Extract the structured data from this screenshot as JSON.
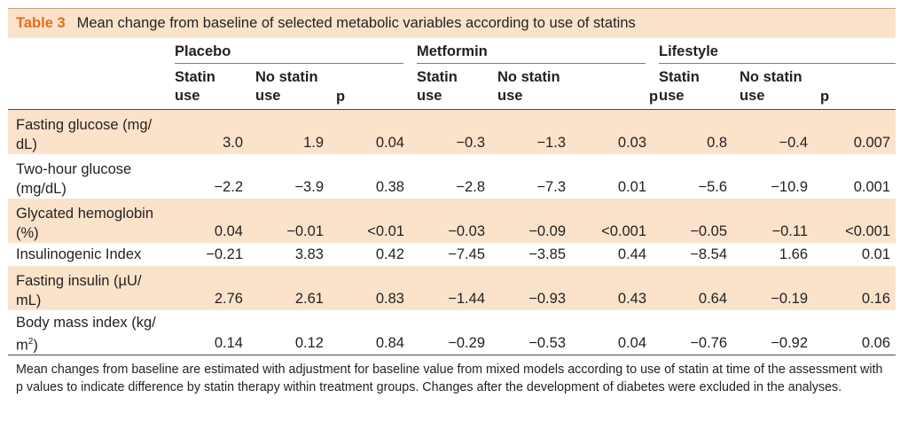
{
  "table": {
    "label": "Table 3",
    "title": "Mean change from baseline of selected metabolic variables according to use of statins",
    "groups": [
      "Placebo",
      "Metformin",
      "Lifestyle"
    ],
    "subheaders": {
      "statin_line1": "Statin",
      "statin_line2": "use",
      "nostatin_line1": "No statin",
      "nostatin_line2": "use",
      "p": "p"
    },
    "rows": [
      {
        "label1": "Fasting glucose (mg/",
        "label2": "dL)",
        "values": [
          "3.0",
          "1.9",
          "0.04",
          "−0.3",
          "−1.3",
          "0.03",
          "0.8",
          "−0.4",
          "0.007"
        ]
      },
      {
        "label1": "Two-hour glucose",
        "label2": "(mg/dL)",
        "values": [
          "−2.2",
          "−3.9",
          "0.38",
          "−2.8",
          "−7.3",
          "0.01",
          "−5.6",
          "−10.9",
          "0.001"
        ]
      },
      {
        "label1": "Glycated hemoglobin",
        "label2": "(%)",
        "values": [
          "0.04",
          "−0.01",
          "<0.01",
          "−0.03",
          "−0.09",
          "<0.001",
          "−0.05",
          "−0.11",
          "<0.001"
        ]
      },
      {
        "label1": "Insulinogenic Index",
        "label2": "",
        "values": [
          "−0.21",
          "3.83",
          "0.42",
          "−7.45",
          "−3.85",
          "0.44",
          "−8.54",
          "1.66",
          "0.01"
        ]
      },
      {
        "label1": "Fasting insulin (µU/",
        "label2": "mL)",
        "values": [
          "2.76",
          "2.61",
          "0.83",
          "−1.44",
          "−0.93",
          "0.43",
          "0.64",
          "−0.19",
          "0.16"
        ]
      },
      {
        "label1": "Body mass index (kg/",
        "label2": "m",
        "label2_sup": "2",
        "label2_tail": ")",
        "values": [
          "0.14",
          "0.12",
          "0.84",
          "−0.29",
          "−0.53",
          "0.04",
          "−0.76",
          "−0.92",
          "0.06"
        ]
      }
    ],
    "footnote": "Mean changes from baseline are estimated with adjustment for baseline value from mixed models according to use of statin at time of the assessment with p values to indicate difference by statin therapy within treatment groups. Changes after the development of diabetes were excluded in the analyses."
  }
}
